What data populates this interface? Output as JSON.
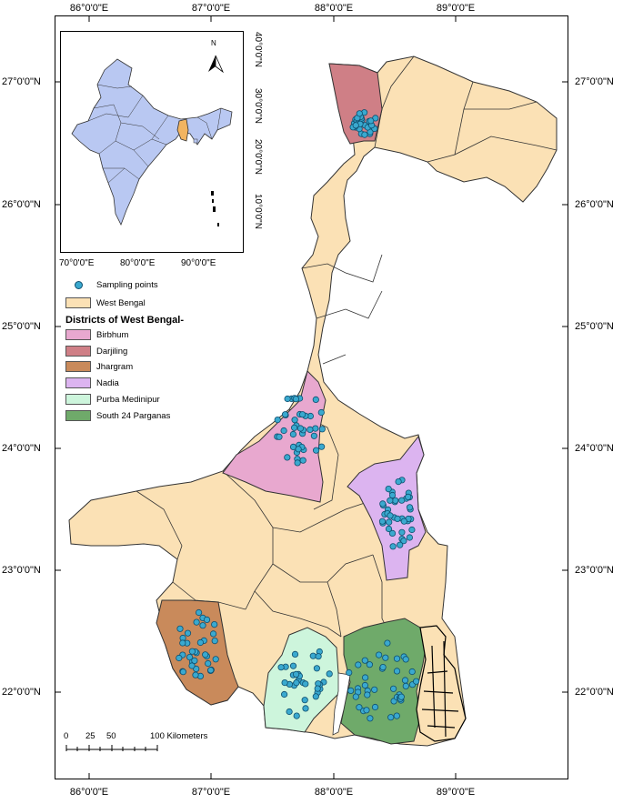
{
  "map": {
    "lat_labels": [
      "27°0'0\"N",
      "26°0'0\"N",
      "25°0'0\"N",
      "24°0'0\"N",
      "23°0'0\"N",
      "22°0'0\"N"
    ],
    "lon_labels": [
      "86°0'0\"E",
      "87°0'0\"E",
      "88°0'0\"E",
      "89°0'0\"E"
    ]
  },
  "inset": {
    "north": "N",
    "lon_labels": [
      "70°0'0\"E",
      "80°0'0\"E",
      "90°0'0\"E"
    ],
    "lat_labels": [
      "40°0'0\"N",
      "30°0'0\"N",
      "20°0'0\"N",
      "10°0'0\"N"
    ]
  },
  "legend": {
    "sampling": "Sampling points",
    "west_bengal": "West Bengal",
    "heading": "Districts of West Bengal-",
    "districts": [
      {
        "label": "Birbhum",
        "color": "#e8a8cf"
      },
      {
        "label": "Darjiling",
        "color": "#cf7f86"
      },
      {
        "label": "Jhargram",
        "color": "#c98a5b"
      },
      {
        "label": "Nadia",
        "color": "#dcb4f0"
      },
      {
        "label": "Purba Medinipur",
        "color": "#cdf5dc"
      },
      {
        "label": "South 24 Parganas",
        "color": "#6faa6a"
      }
    ],
    "state_color": "#fbe1b5",
    "point_color": "#3aa9cf"
  },
  "scale": {
    "labels": [
      "0",
      "25",
      "50",
      "100 Kilometers"
    ]
  }
}
